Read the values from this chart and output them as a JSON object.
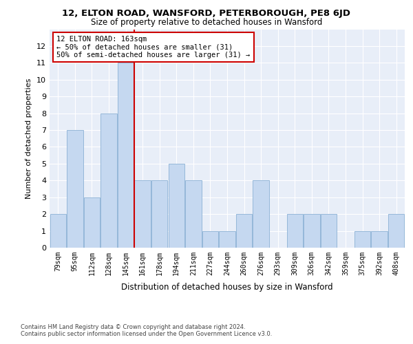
{
  "title": "12, ELTON ROAD, WANSFORD, PETERBOROUGH, PE8 6JD",
  "subtitle": "Size of property relative to detached houses in Wansford",
  "xlabel": "Distribution of detached houses by size in Wansford",
  "ylabel": "Number of detached properties",
  "categories": [
    "79sqm",
    "95sqm",
    "112sqm",
    "128sqm",
    "145sqm",
    "161sqm",
    "178sqm",
    "194sqm",
    "211sqm",
    "227sqm",
    "244sqm",
    "260sqm",
    "276sqm",
    "293sqm",
    "309sqm",
    "326sqm",
    "342sqm",
    "359sqm",
    "375sqm",
    "392sqm",
    "408sqm"
  ],
  "values": [
    2,
    7,
    3,
    8,
    11,
    4,
    4,
    5,
    4,
    1,
    1,
    2,
    4,
    0,
    2,
    2,
    2,
    0,
    1,
    1,
    2
  ],
  "bar_color": "#c5d8f0",
  "bar_edge_color": "#8ab0d4",
  "vline_x_index": 5,
  "vline_color": "#cc0000",
  "annotation_text": "12 ELTON ROAD: 163sqm\n← 50% of detached houses are smaller (31)\n50% of semi-detached houses are larger (31) →",
  "annotation_box_color": "white",
  "annotation_box_edge_color": "#cc0000",
  "ylim": [
    0,
    13
  ],
  "yticks": [
    0,
    1,
    2,
    3,
    4,
    5,
    6,
    7,
    8,
    9,
    10,
    11,
    12
  ],
  "bg_color": "#e8eef8",
  "grid_color": "white",
  "title_fontsize": 9.5,
  "subtitle_fontsize": 8.5,
  "footer_line1": "Contains HM Land Registry data © Crown copyright and database right 2024.",
  "footer_line2": "Contains public sector information licensed under the Open Government Licence v3.0."
}
